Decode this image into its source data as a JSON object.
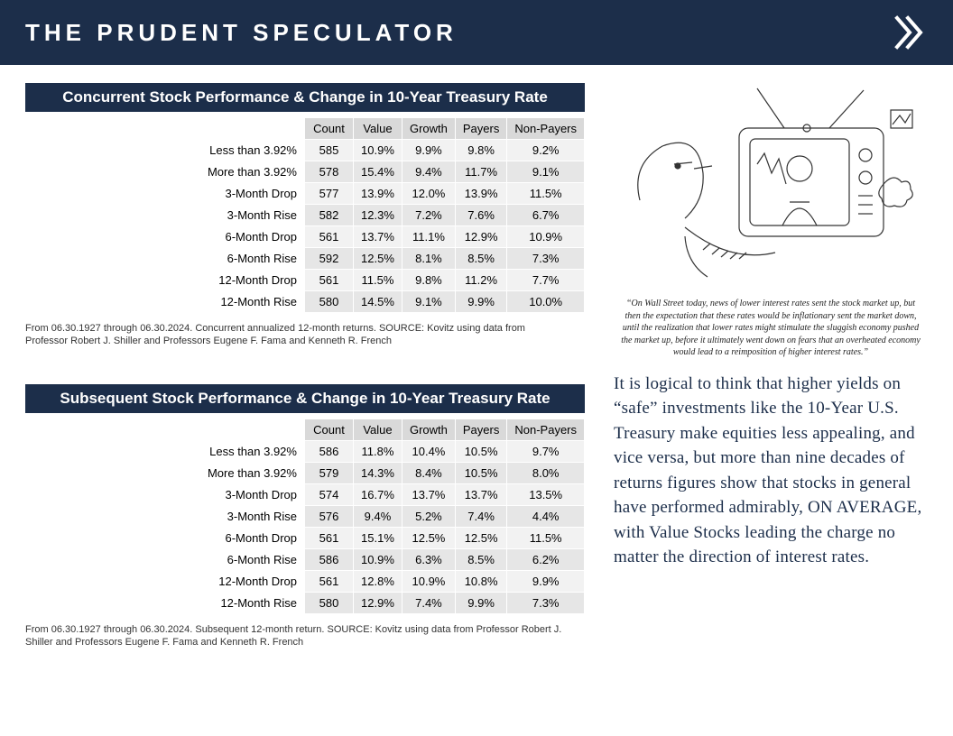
{
  "header": {
    "title": "THE PRUDENT SPECULATOR"
  },
  "colors": {
    "primary": "#1c2e4a",
    "white": "#ffffff",
    "th_bg": "#d9d9d9",
    "row_odd": "#f2f2f2",
    "row_even": "#e6e6e6",
    "body_text": "#1c2e4a"
  },
  "tables": {
    "columns": [
      "Count",
      "Value",
      "Growth",
      "Payers",
      "Non-Payers"
    ],
    "row_labels": [
      "Less than 3.92%",
      "More than 3.92%",
      "3-Month Drop",
      "3-Month Rise",
      "6-Month Drop",
      "6-Month Rise",
      "12-Month Drop",
      "12-Month Rise"
    ],
    "concurrent": {
      "title": "Concurrent Stock Performance & Change in 10-Year Treasury Rate",
      "rows": [
        [
          "585",
          "10.9%",
          "9.9%",
          "9.8%",
          "9.2%"
        ],
        [
          "578",
          "15.4%",
          "9.4%",
          "11.7%",
          "9.1%"
        ],
        [
          "577",
          "13.9%",
          "12.0%",
          "13.9%",
          "11.5%"
        ],
        [
          "582",
          "12.3%",
          "7.2%",
          "7.6%",
          "6.7%"
        ],
        [
          "561",
          "13.7%",
          "11.1%",
          "12.9%",
          "10.9%"
        ],
        [
          "592",
          "12.5%",
          "8.1%",
          "8.5%",
          "7.3%"
        ],
        [
          "561",
          "11.5%",
          "9.8%",
          "11.2%",
          "7.7%"
        ],
        [
          "580",
          "14.5%",
          "9.1%",
          "9.9%",
          "10.0%"
        ]
      ],
      "footnote": "From 06.30.1927 through 06.30.2024. Concurrent annualized 12-month returns. SOURCE: Kovitz using data from Professor Robert J. Shiller and Professors Eugene F. Fama and Kenneth R. French"
    },
    "subsequent": {
      "title": "Subsequent Stock Performance & Change in 10-Year Treasury Rate",
      "rows": [
        [
          "586",
          "11.8%",
          "10.4%",
          "10.5%",
          "9.7%"
        ],
        [
          "579",
          "14.3%",
          "8.4%",
          "10.5%",
          "8.0%"
        ],
        [
          "574",
          "16.7%",
          "13.7%",
          "13.7%",
          "13.5%"
        ],
        [
          "576",
          "9.4%",
          "5.2%",
          "7.4%",
          "4.4%"
        ],
        [
          "561",
          "15.1%",
          "12.5%",
          "12.5%",
          "11.5%"
        ],
        [
          "586",
          "10.9%",
          "6.3%",
          "8.5%",
          "6.2%"
        ],
        [
          "561",
          "12.8%",
          "10.9%",
          "10.8%",
          "9.9%"
        ],
        [
          "580",
          "12.9%",
          "7.4%",
          "9.9%",
          "7.3%"
        ]
      ],
      "footnote": "From 06.30.1927 through 06.30.2024. Subsequent 12-month return. SOURCE: Kovitz using data from Professor Robert J. Shiller and Professors Eugene F. Fama and Kenneth R. French"
    }
  },
  "cartoon": {
    "caption": "“On Wall Street today, news of lower interest rates sent the stock market up, but then the expectation that these rates would be inflationary sent the market down, until the realization that lower rates might stimulate the sluggish economy pushed the market up, before it ultimately went down on fears that an overheated economy would lead to a reimposition of higher interest rates.”"
  },
  "body_paragraph": "It is logical to think that higher yields on “safe” investments like the 10-Year U.S. Treasury make equities less appealing, and vice versa, but more than nine decades of returns figures show that stocks in general have performed admirably, ON AVERAGE, with Value Stocks leading the charge no matter the direction of interest rates."
}
